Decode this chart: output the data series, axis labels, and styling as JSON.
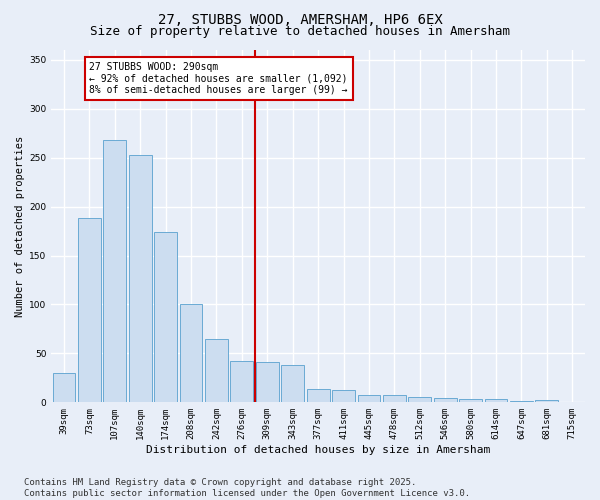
{
  "title": "27, STUBBS WOOD, AMERSHAM, HP6 6EX",
  "subtitle": "Size of property relative to detached houses in Amersham",
  "xlabel": "Distribution of detached houses by size in Amersham",
  "ylabel": "Number of detached properties",
  "categories": [
    "39sqm",
    "73sqm",
    "107sqm",
    "140sqm",
    "174sqm",
    "208sqm",
    "242sqm",
    "276sqm",
    "309sqm",
    "343sqm",
    "377sqm",
    "411sqm",
    "445sqm",
    "478sqm",
    "512sqm",
    "546sqm",
    "580sqm",
    "614sqm",
    "647sqm",
    "681sqm",
    "715sqm"
  ],
  "values": [
    30,
    188,
    268,
    253,
    174,
    100,
    65,
    42,
    41,
    38,
    14,
    13,
    8,
    7,
    5,
    4,
    3,
    3,
    1,
    2,
    0
  ],
  "bar_color": "#ccddf0",
  "bar_edge_color": "#6aaad4",
  "vline_x_index": 8,
  "vline_color": "#cc0000",
  "annotation_text": "27 STUBBS WOOD: 290sqm\n← 92% of detached houses are smaller (1,092)\n8% of semi-detached houses are larger (99) →",
  "annotation_box_color": "#cc0000",
  "annotation_text_color": "#000000",
  "annotation_bg_color": "#ffffff",
  "ylim": [
    0,
    360
  ],
  "yticks": [
    0,
    50,
    100,
    150,
    200,
    250,
    300,
    350
  ],
  "bg_color": "#e8eef8",
  "plot_bg_color": "#e8eef8",
  "grid_color": "#ffffff",
  "title_fontsize": 10,
  "subtitle_fontsize": 9,
  "axis_label_fontsize": 8,
  "tick_fontsize": 6.5,
  "ylabel_fontsize": 7.5,
  "footer_text": "Contains HM Land Registry data © Crown copyright and database right 2025.\nContains public sector information licensed under the Open Government Licence v3.0.",
  "footer_fontsize": 6.5
}
